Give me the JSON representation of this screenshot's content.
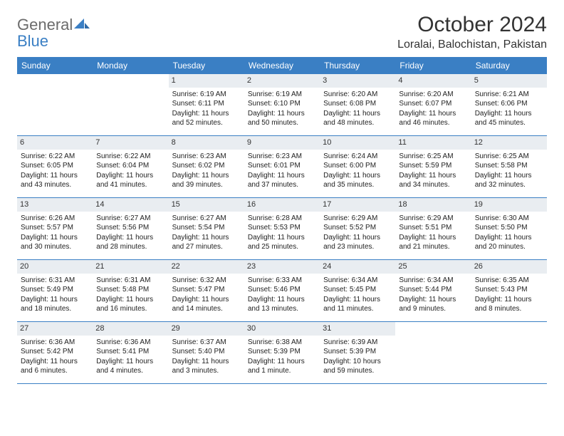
{
  "logo": {
    "word1": "General",
    "word2": "Blue"
  },
  "header": {
    "month_title": "October 2024",
    "location": "Loralai, Balochistan, Pakistan"
  },
  "colors": {
    "header_bg": "#3a7fc4",
    "daynum_bg": "#e9edf1",
    "border": "#3a7fc4",
    "text": "#222222",
    "logo_gray": "#6b6b6b",
    "logo_blue": "#3a7fc4"
  },
  "day_names": [
    "Sunday",
    "Monday",
    "Tuesday",
    "Wednesday",
    "Thursday",
    "Friday",
    "Saturday"
  ],
  "weeks": [
    [
      {
        "n": "",
        "sr": "",
        "ss": "",
        "dl1": "",
        "dl2": ""
      },
      {
        "n": "",
        "sr": "",
        "ss": "",
        "dl1": "",
        "dl2": ""
      },
      {
        "n": "1",
        "sr": "Sunrise: 6:19 AM",
        "ss": "Sunset: 6:11 PM",
        "dl1": "Daylight: 11 hours",
        "dl2": "and 52 minutes."
      },
      {
        "n": "2",
        "sr": "Sunrise: 6:19 AM",
        "ss": "Sunset: 6:10 PM",
        "dl1": "Daylight: 11 hours",
        "dl2": "and 50 minutes."
      },
      {
        "n": "3",
        "sr": "Sunrise: 6:20 AM",
        "ss": "Sunset: 6:08 PM",
        "dl1": "Daylight: 11 hours",
        "dl2": "and 48 minutes."
      },
      {
        "n": "4",
        "sr": "Sunrise: 6:20 AM",
        "ss": "Sunset: 6:07 PM",
        "dl1": "Daylight: 11 hours",
        "dl2": "and 46 minutes."
      },
      {
        "n": "5",
        "sr": "Sunrise: 6:21 AM",
        "ss": "Sunset: 6:06 PM",
        "dl1": "Daylight: 11 hours",
        "dl2": "and 45 minutes."
      }
    ],
    [
      {
        "n": "6",
        "sr": "Sunrise: 6:22 AM",
        "ss": "Sunset: 6:05 PM",
        "dl1": "Daylight: 11 hours",
        "dl2": "and 43 minutes."
      },
      {
        "n": "7",
        "sr": "Sunrise: 6:22 AM",
        "ss": "Sunset: 6:04 PM",
        "dl1": "Daylight: 11 hours",
        "dl2": "and 41 minutes."
      },
      {
        "n": "8",
        "sr": "Sunrise: 6:23 AM",
        "ss": "Sunset: 6:02 PM",
        "dl1": "Daylight: 11 hours",
        "dl2": "and 39 minutes."
      },
      {
        "n": "9",
        "sr": "Sunrise: 6:23 AM",
        "ss": "Sunset: 6:01 PM",
        "dl1": "Daylight: 11 hours",
        "dl2": "and 37 minutes."
      },
      {
        "n": "10",
        "sr": "Sunrise: 6:24 AM",
        "ss": "Sunset: 6:00 PM",
        "dl1": "Daylight: 11 hours",
        "dl2": "and 35 minutes."
      },
      {
        "n": "11",
        "sr": "Sunrise: 6:25 AM",
        "ss": "Sunset: 5:59 PM",
        "dl1": "Daylight: 11 hours",
        "dl2": "and 34 minutes."
      },
      {
        "n": "12",
        "sr": "Sunrise: 6:25 AM",
        "ss": "Sunset: 5:58 PM",
        "dl1": "Daylight: 11 hours",
        "dl2": "and 32 minutes."
      }
    ],
    [
      {
        "n": "13",
        "sr": "Sunrise: 6:26 AM",
        "ss": "Sunset: 5:57 PM",
        "dl1": "Daylight: 11 hours",
        "dl2": "and 30 minutes."
      },
      {
        "n": "14",
        "sr": "Sunrise: 6:27 AM",
        "ss": "Sunset: 5:56 PM",
        "dl1": "Daylight: 11 hours",
        "dl2": "and 28 minutes."
      },
      {
        "n": "15",
        "sr": "Sunrise: 6:27 AM",
        "ss": "Sunset: 5:54 PM",
        "dl1": "Daylight: 11 hours",
        "dl2": "and 27 minutes."
      },
      {
        "n": "16",
        "sr": "Sunrise: 6:28 AM",
        "ss": "Sunset: 5:53 PM",
        "dl1": "Daylight: 11 hours",
        "dl2": "and 25 minutes."
      },
      {
        "n": "17",
        "sr": "Sunrise: 6:29 AM",
        "ss": "Sunset: 5:52 PM",
        "dl1": "Daylight: 11 hours",
        "dl2": "and 23 minutes."
      },
      {
        "n": "18",
        "sr": "Sunrise: 6:29 AM",
        "ss": "Sunset: 5:51 PM",
        "dl1": "Daylight: 11 hours",
        "dl2": "and 21 minutes."
      },
      {
        "n": "19",
        "sr": "Sunrise: 6:30 AM",
        "ss": "Sunset: 5:50 PM",
        "dl1": "Daylight: 11 hours",
        "dl2": "and 20 minutes."
      }
    ],
    [
      {
        "n": "20",
        "sr": "Sunrise: 6:31 AM",
        "ss": "Sunset: 5:49 PM",
        "dl1": "Daylight: 11 hours",
        "dl2": "and 18 minutes."
      },
      {
        "n": "21",
        "sr": "Sunrise: 6:31 AM",
        "ss": "Sunset: 5:48 PM",
        "dl1": "Daylight: 11 hours",
        "dl2": "and 16 minutes."
      },
      {
        "n": "22",
        "sr": "Sunrise: 6:32 AM",
        "ss": "Sunset: 5:47 PM",
        "dl1": "Daylight: 11 hours",
        "dl2": "and 14 minutes."
      },
      {
        "n": "23",
        "sr": "Sunrise: 6:33 AM",
        "ss": "Sunset: 5:46 PM",
        "dl1": "Daylight: 11 hours",
        "dl2": "and 13 minutes."
      },
      {
        "n": "24",
        "sr": "Sunrise: 6:34 AM",
        "ss": "Sunset: 5:45 PM",
        "dl1": "Daylight: 11 hours",
        "dl2": "and 11 minutes."
      },
      {
        "n": "25",
        "sr": "Sunrise: 6:34 AM",
        "ss": "Sunset: 5:44 PM",
        "dl1": "Daylight: 11 hours",
        "dl2": "and 9 minutes."
      },
      {
        "n": "26",
        "sr": "Sunrise: 6:35 AM",
        "ss": "Sunset: 5:43 PM",
        "dl1": "Daylight: 11 hours",
        "dl2": "and 8 minutes."
      }
    ],
    [
      {
        "n": "27",
        "sr": "Sunrise: 6:36 AM",
        "ss": "Sunset: 5:42 PM",
        "dl1": "Daylight: 11 hours",
        "dl2": "and 6 minutes."
      },
      {
        "n": "28",
        "sr": "Sunrise: 6:36 AM",
        "ss": "Sunset: 5:41 PM",
        "dl1": "Daylight: 11 hours",
        "dl2": "and 4 minutes."
      },
      {
        "n": "29",
        "sr": "Sunrise: 6:37 AM",
        "ss": "Sunset: 5:40 PM",
        "dl1": "Daylight: 11 hours",
        "dl2": "and 3 minutes."
      },
      {
        "n": "30",
        "sr": "Sunrise: 6:38 AM",
        "ss": "Sunset: 5:39 PM",
        "dl1": "Daylight: 11 hours",
        "dl2": "and 1 minute."
      },
      {
        "n": "31",
        "sr": "Sunrise: 6:39 AM",
        "ss": "Sunset: 5:39 PM",
        "dl1": "Daylight: 10 hours",
        "dl2": "and 59 minutes."
      },
      {
        "n": "",
        "sr": "",
        "ss": "",
        "dl1": "",
        "dl2": ""
      },
      {
        "n": "",
        "sr": "",
        "ss": "",
        "dl1": "",
        "dl2": ""
      }
    ]
  ]
}
